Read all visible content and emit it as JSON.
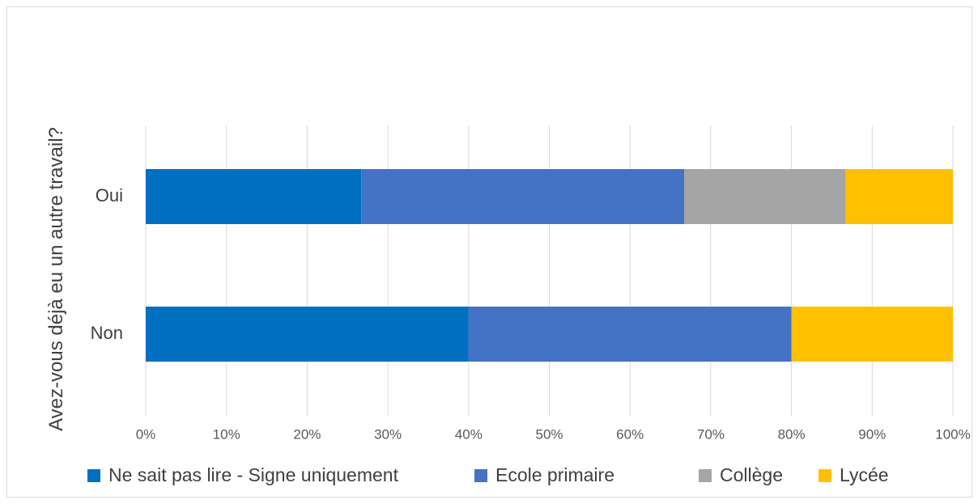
{
  "chart_data": {
    "type": "bar",
    "orientation": "horizontal",
    "stacked": "percent",
    "categories": [
      "Oui",
      "Non"
    ],
    "series": [
      {
        "name": "Ne sait pas lire - Signe uniquement",
        "color": "#0070C0",
        "values": [
          26.7,
          40
        ]
      },
      {
        "name": "Ecole primaire",
        "color": "#4472C4",
        "values": [
          40,
          40
        ]
      },
      {
        "name": "Collège",
        "color": "#A5A5A5",
        "values": [
          20,
          0
        ]
      },
      {
        "name": "Lycée",
        "color": "#FFC000",
        "values": [
          13.3,
          20
        ]
      }
    ],
    "xticks": [
      "0%",
      "10%",
      "20%",
      "30%",
      "40%",
      "50%",
      "60%",
      "70%",
      "80%",
      "90%",
      "100%"
    ],
    "xlim": [
      0,
      100
    ],
    "title": "",
    "xlabel": "",
    "ylabel": "Avez-vous déjà eu un autre travail?",
    "grid": true,
    "legend_position": "bottom"
  }
}
